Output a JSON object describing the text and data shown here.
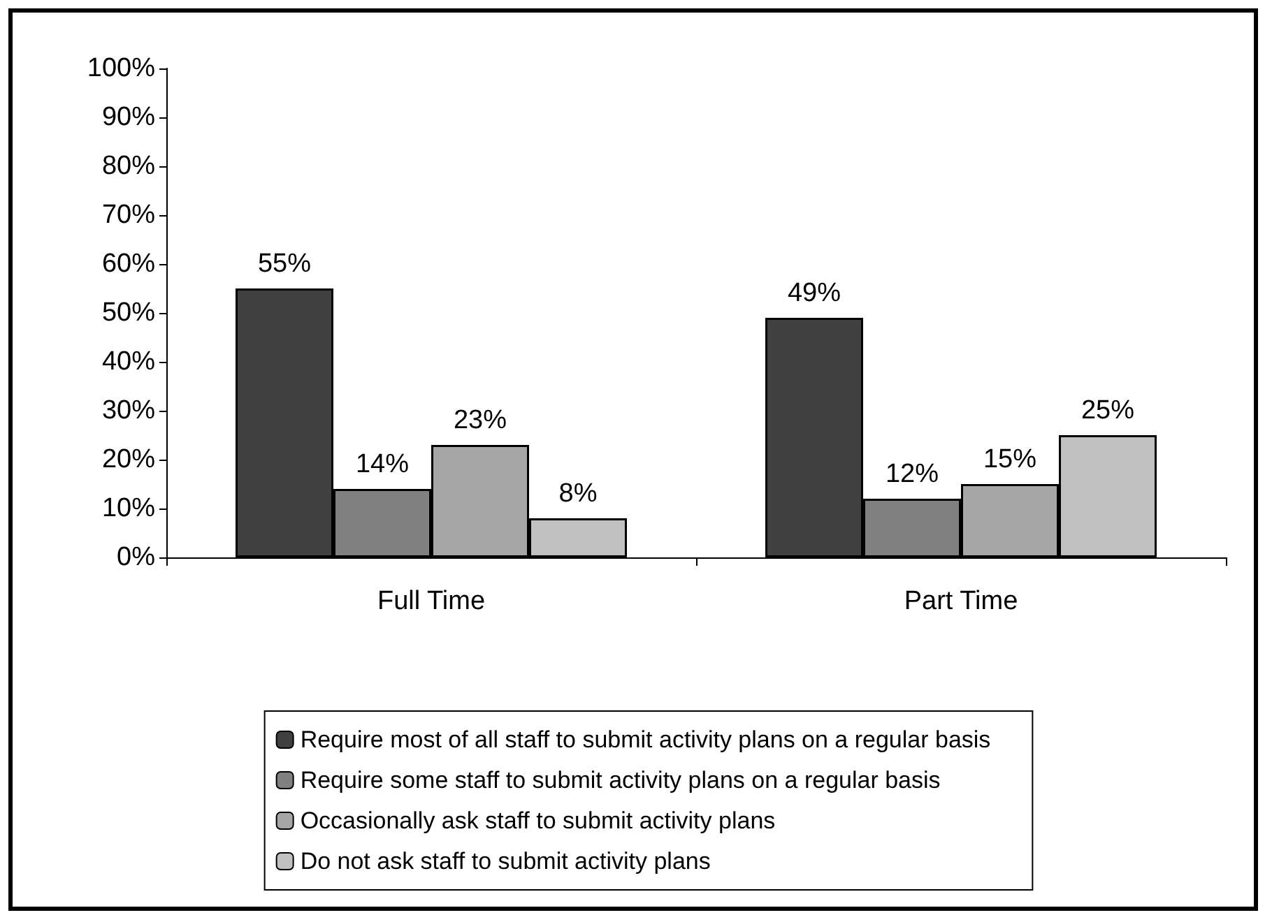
{
  "chart_data": {
    "type": "bar",
    "categories": [
      "Full Time",
      "Part Time"
    ],
    "series": [
      {
        "name": "Require most of all staff to submit activity plans on a regular basis",
        "color": "#404040",
        "values": [
          55,
          49
        ],
        "value_labels": [
          "55%",
          "49%"
        ]
      },
      {
        "name": "Require some staff to submit activity plans on a regular basis",
        "color": "#808080",
        "values": [
          14,
          12
        ],
        "value_labels": [
          "14%",
          "12%"
        ]
      },
      {
        "name": "Occasionally ask staff to submit activity plans",
        "color": "#a6a6a6",
        "values": [
          23,
          15
        ],
        "value_labels": [
          "23%",
          "15%"
        ]
      },
      {
        "name": "Do not ask staff to submit activity plans",
        "color": "#c0c0c0",
        "values": [
          8,
          25
        ],
        "value_labels": [
          "8%",
          "25%"
        ]
      }
    ],
    "ylim": [
      0,
      100
    ],
    "yticks": [
      {
        "value": 0,
        "label": "0%"
      },
      {
        "value": 10,
        "label": "10%"
      },
      {
        "value": 20,
        "label": "20%"
      },
      {
        "value": 30,
        "label": "30%"
      },
      {
        "value": 40,
        "label": "40%"
      },
      {
        "value": 50,
        "label": "50%"
      },
      {
        "value": 60,
        "label": "60%"
      },
      {
        "value": 70,
        "label": "70%"
      },
      {
        "value": 80,
        "label": "80%"
      },
      {
        "value": 90,
        "label": "90%"
      },
      {
        "value": 100,
        "label": "100%"
      }
    ],
    "grid": false,
    "legend": "bottom"
  }
}
